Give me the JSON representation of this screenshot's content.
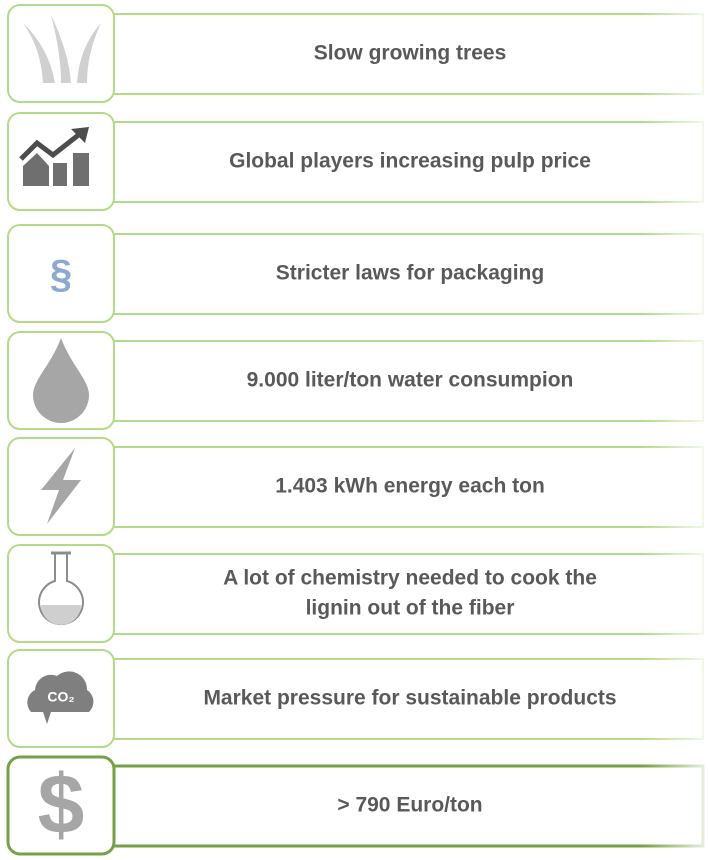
{
  "items": [
    {
      "lines": [
        "Slow growing trees"
      ]
    },
    {
      "lines": [
        "Global players increasing pulp price"
      ]
    },
    {
      "icon_label": "§",
      "lines": [
        "Stricter laws for packaging"
      ]
    },
    {
      "lines": [
        "9.000 liter/ton water consumpion"
      ]
    },
    {
      "lines": [
        "1.403 kWh energy each ton"
      ]
    },
    {
      "lines": [
        "A lot of chemistry needed to cook the",
        "lignin out of the fiber"
      ]
    },
    {
      "icon_label": "CO₂",
      "lines": [
        "Market pressure for sustainable products"
      ]
    },
    {
      "lines": [
        "> 790 Euro/ton"
      ]
    }
  ]
}
